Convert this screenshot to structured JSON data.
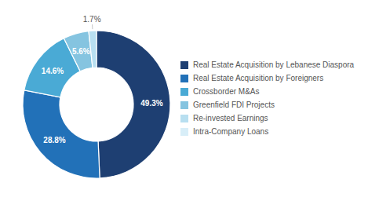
{
  "chart_data": {
    "type": "pie",
    "categories": [
      "Real Estate Acquisition by Lebanese Diaspora",
      "Real Estate Acquisition by Foreigners",
      "Crossborder M&As",
      "Greenfield FDI Projects",
      "Re-invested Earnings",
      "Intra-Company Loans"
    ],
    "values": [
      49.3,
      28.8,
      14.6,
      5.6,
      1.7,
      0.0
    ],
    "value_labels": [
      "49.3%",
      "28.8%",
      "14.6%",
      "5.6%",
      "1.7%",
      null
    ],
    "colors": [
      "#1e3f72",
      "#2271b8",
      "#4aaad5",
      "#85c4e0",
      "#b8dff0",
      "#d8eef8"
    ],
    "data_labels": true,
    "legend": "right"
  }
}
